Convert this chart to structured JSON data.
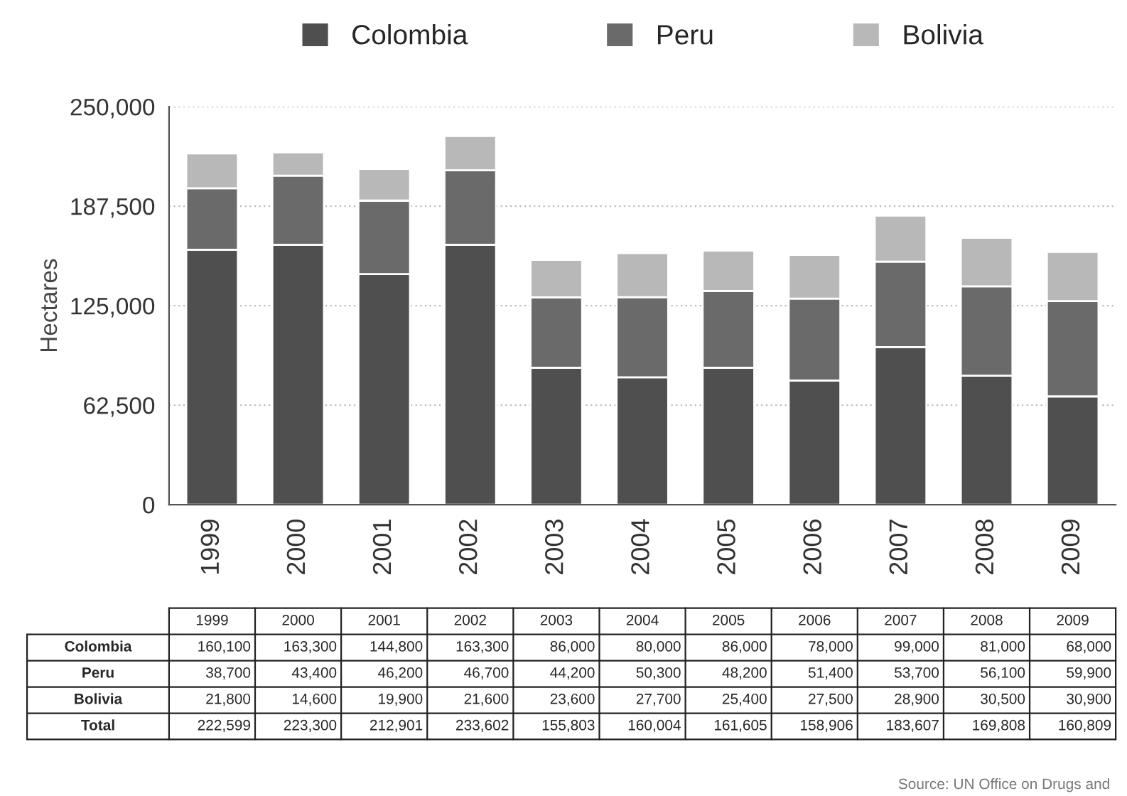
{
  "chart_data": {
    "type": "bar",
    "stacked": true,
    "ylabel": "Hectares",
    "categories": [
      "1999",
      "2000",
      "2001",
      "2002",
      "2003",
      "2004",
      "2005",
      "2006",
      "2007",
      "2008",
      "2009"
    ],
    "series": [
      {
        "name": "Colombia",
        "color": "#4f4f4f",
        "values": [
          160100,
          163300,
          144800,
          163300,
          86000,
          80000,
          86000,
          78000,
          99000,
          81000,
          68000
        ],
        "value_labels": [
          "160,100",
          "163,300",
          "144,800",
          "163,300",
          "86,000",
          "80,000",
          "86,000",
          "78,000",
          "99,000",
          "81,000",
          "68,000"
        ]
      },
      {
        "name": "Peru",
        "color": "#6a6a6a",
        "values": [
          38700,
          43400,
          46200,
          46700,
          44200,
          50300,
          48200,
          51400,
          53700,
          56100,
          59900
        ],
        "value_labels": [
          "38,700",
          "43,400",
          "46,200",
          "46,700",
          "44,200",
          "50,300",
          "48,200",
          "51,400",
          "53,700",
          "56,100",
          "59,900"
        ]
      },
      {
        "name": "Bolivia",
        "color": "#b8b8b8",
        "values": [
          21800,
          14600,
          19900,
          21600,
          23600,
          27700,
          25400,
          27500,
          28900,
          30500,
          30900
        ],
        "value_labels": [
          "21,800",
          "14,600",
          "19,900",
          "21,600",
          "23,600",
          "27,700",
          "25,400",
          "27,500",
          "28,900",
          "30,500",
          "30,900"
        ]
      }
    ],
    "ylim": [
      0,
      250000
    ],
    "yticks": [
      0,
      {
        "value": 62500,
        "label": "62,500"
      },
      {
        "value": 125000,
        "label": "125,000"
      },
      {
        "value": 187500,
        "label": "187,500"
      },
      {
        "value": 250000,
        "label": "250,000"
      }
    ],
    "grid": "y",
    "legend": "top",
    "annotations": [
      "Total",
      "222,599",
      "223,300",
      "212,901",
      "233,602",
      "155,803",
      "160,004",
      "161,605",
      "158,906",
      "183,607",
      "169,808",
      "160,809",
      "Source: UN Office on Drugs and"
    ]
  }
}
